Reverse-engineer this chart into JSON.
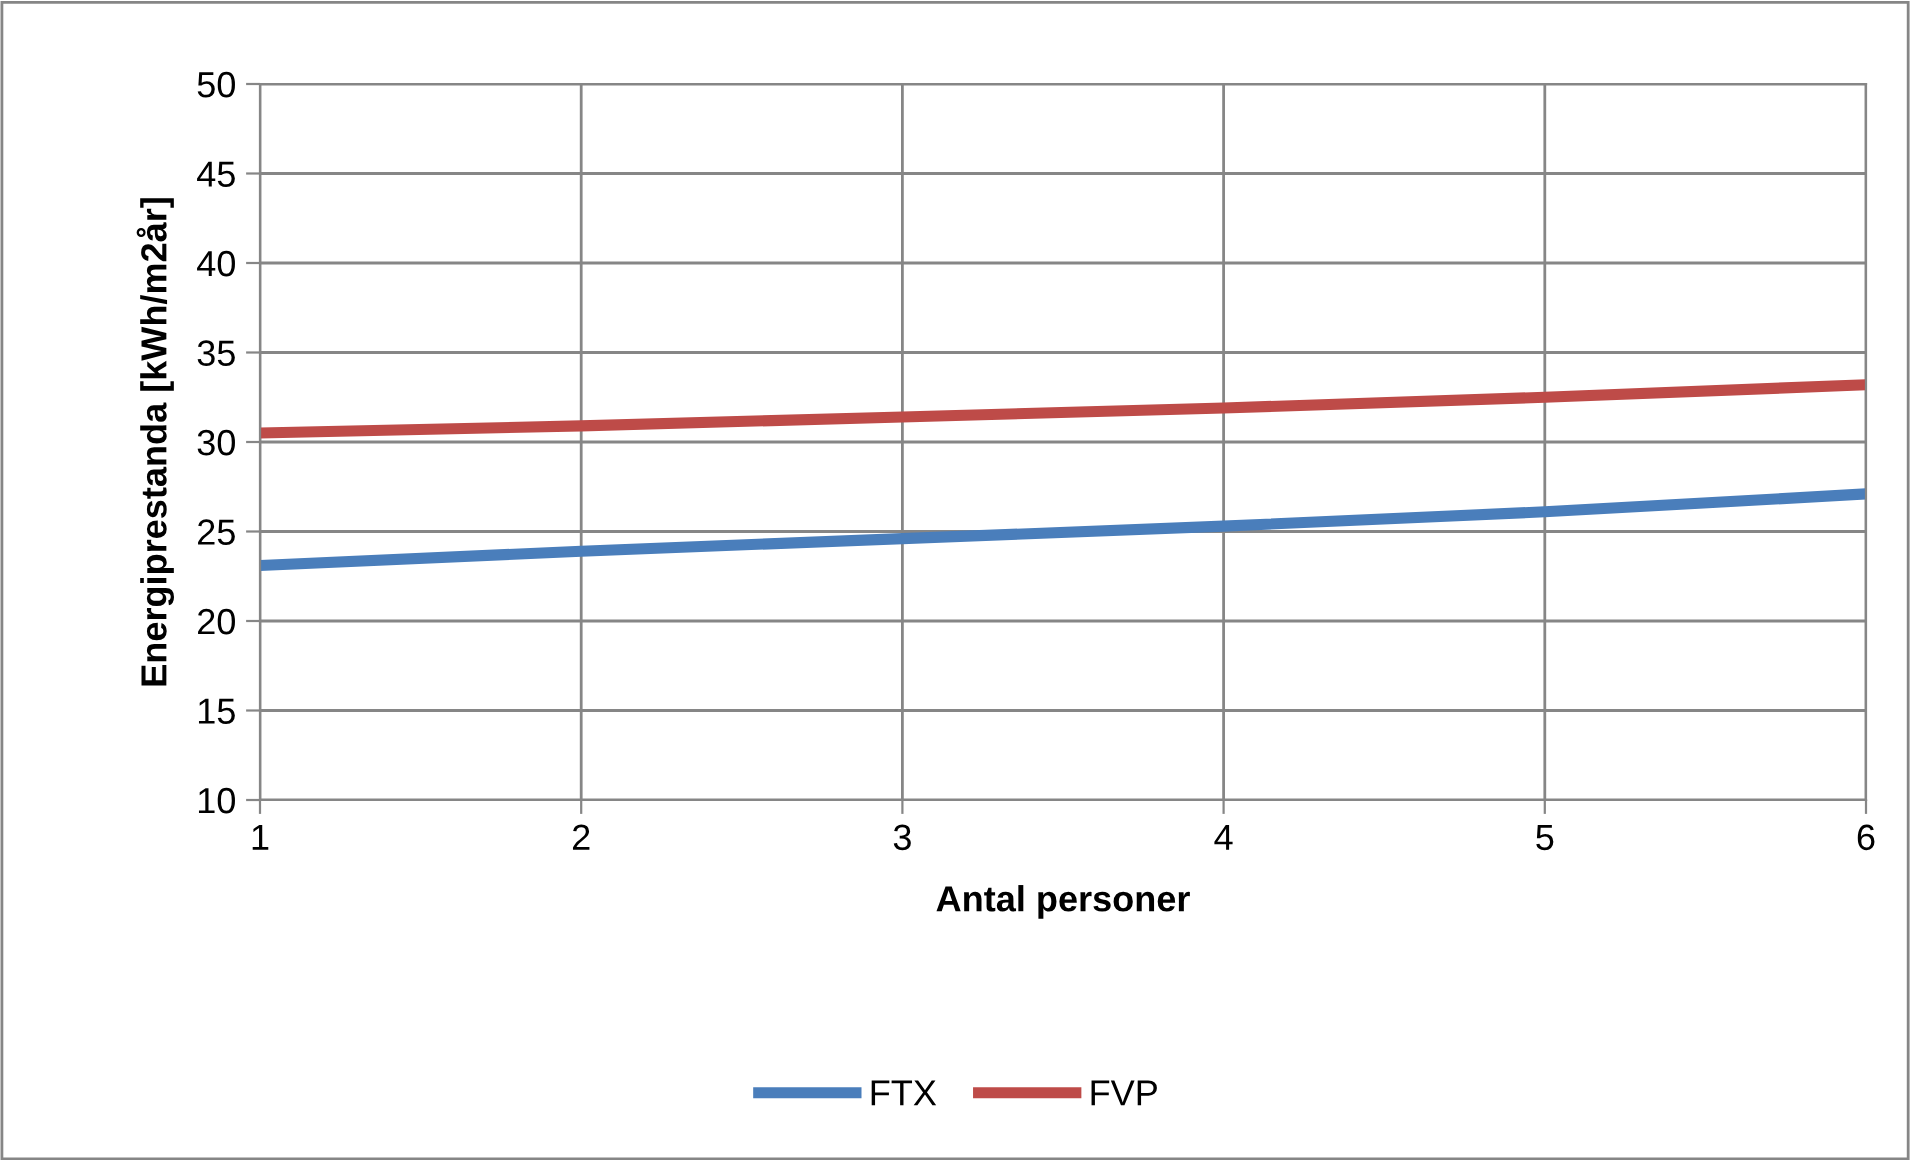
{
  "chart_data": {
    "type": "line",
    "xlabel": "Antal personer",
    "ylabel": "Energiprestanda [kWh/m2år]",
    "x": [
      1,
      2,
      3,
      4,
      5,
      6
    ],
    "series": [
      {
        "name": "FTX",
        "color": "#4a7ebb",
        "values": [
          23.1,
          23.9,
          24.6,
          25.3,
          26.1,
          27.1
        ]
      },
      {
        "name": "FVP",
        "color": "#be4b48",
        "values": [
          30.5,
          30.9,
          31.4,
          31.9,
          32.5,
          33.2
        ]
      }
    ],
    "xlim": [
      1,
      6
    ],
    "xticks": [
      1,
      2,
      3,
      4,
      5,
      6
    ],
    "ylim": [
      10,
      50
    ],
    "yticks": [
      10,
      15,
      20,
      25,
      30,
      35,
      40,
      45,
      50
    ],
    "grid": true,
    "legend": "bottom",
    "marker": "none",
    "line_style": "solid"
  }
}
